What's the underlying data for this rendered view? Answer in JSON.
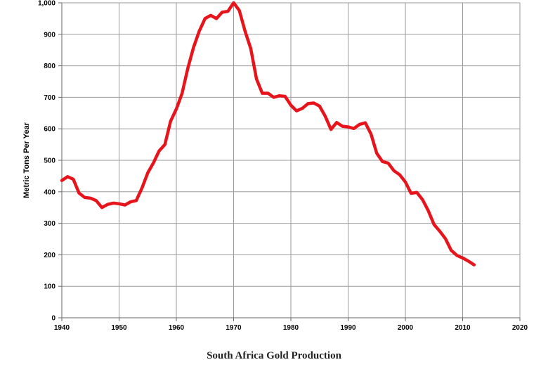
{
  "chart_data": {
    "type": "line",
    "title": "South Africa Gold Production",
    "xlabel": "",
    "ylabel": "Metric Tons Per Year",
    "xlim": [
      1940,
      2020
    ],
    "ylim": [
      0,
      1000
    ],
    "x_ticks": [
      1940,
      1950,
      1960,
      1970,
      1980,
      1990,
      2000,
      2010,
      2020
    ],
    "x_tick_labels": [
      "1940",
      "1950",
      "1960",
      "1970",
      "1980",
      "1990",
      "2000",
      "2010",
      "2020"
    ],
    "y_ticks": [
      0,
      100,
      200,
      300,
      400,
      500,
      600,
      700,
      800,
      900,
      1000
    ],
    "y_tick_labels": [
      "0",
      "100",
      "200",
      "300",
      "400",
      "500",
      "600",
      "700",
      "800",
      "900",
      "1,000"
    ],
    "grid": true,
    "line_color": "#e8141b",
    "series": [
      {
        "name": "South Africa Gold Production",
        "x": [
          1940,
          1941,
          1942,
          1943,
          1944,
          1945,
          1946,
          1947,
          1948,
          1949,
          1950,
          1951,
          1952,
          1953,
          1954,
          1955,
          1956,
          1957,
          1958,
          1959,
          1960,
          1961,
          1962,
          1963,
          1964,
          1965,
          1966,
          1967,
          1968,
          1969,
          1970,
          1971,
          1972,
          1973,
          1974,
          1975,
          1976,
          1977,
          1978,
          1979,
          1980,
          1981,
          1982,
          1983,
          1984,
          1985,
          1986,
          1987,
          1988,
          1989,
          1990,
          1991,
          1992,
          1993,
          1994,
          1995,
          1996,
          1997,
          1998,
          1999,
          2000,
          2001,
          2002,
          2003,
          2004,
          2005,
          2006,
          2007,
          2008,
          2009,
          2010,
          2011,
          2012
        ],
        "values": [
          436,
          448,
          440,
          396,
          382,
          380,
          372,
          350,
          360,
          364,
          362,
          358,
          368,
          372,
          412,
          460,
          492,
          530,
          550,
          624,
          663,
          712,
          792,
          858,
          910,
          950,
          960,
          950,
          970,
          973,
          1000,
          976,
          910,
          855,
          758,
          713,
          713,
          700,
          705,
          703,
          675,
          657,
          665,
          680,
          682,
          672,
          640,
          598,
          620,
          608,
          606,
          601,
          614,
          619,
          583,
          522,
          496,
          491,
          467,
          454,
          431,
          395,
          398,
          375,
          340,
          296,
          275,
          251,
          214,
          198,
          190,
          180,
          168
        ]
      }
    ]
  }
}
